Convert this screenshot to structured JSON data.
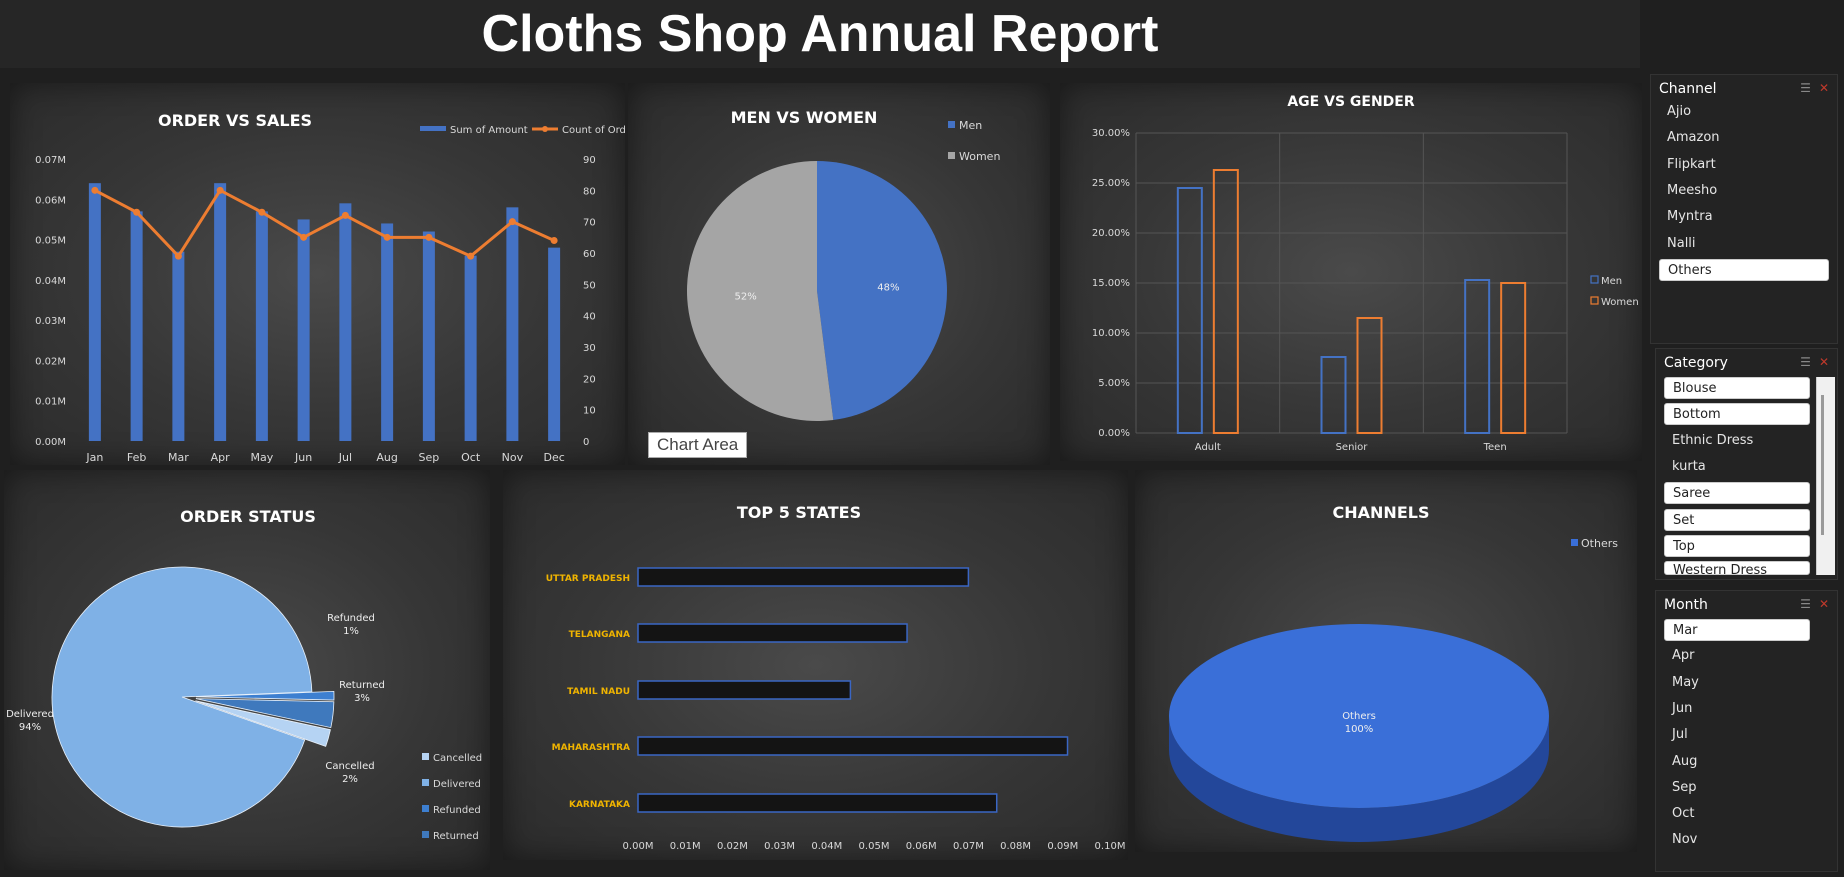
{
  "page": {
    "title": "Cloths Shop Annual Report"
  },
  "tooltip": {
    "chart_area": "Chart Area"
  },
  "chart_data": [
    {
      "id": "order-vs-sales",
      "type": "bar",
      "title": "ORDER VS SALES",
      "categories": [
        "Jan",
        "Feb",
        "Mar",
        "Apr",
        "May",
        "Jun",
        "Jul",
        "Aug",
        "Sep",
        "Oct",
        "Nov",
        "Dec"
      ],
      "series": [
        {
          "name": "Sum of Amount",
          "type": "bar",
          "axis": "left",
          "color": "#4472c4",
          "values": [
            0.064,
            0.057,
            0.047,
            0.064,
            0.057,
            0.055,
            0.059,
            0.054,
            0.052,
            0.046,
            0.058,
            0.048
          ]
        },
        {
          "name": "Count of Order ID",
          "type": "line",
          "axis": "right",
          "color": "#ed7d31",
          "values": [
            80,
            73,
            59,
            80,
            73,
            65,
            72,
            65,
            65,
            59,
            70,
            64
          ]
        }
      ],
      "left_ticks": [
        "0.00M",
        "0.01M",
        "0.02M",
        "0.03M",
        "0.04M",
        "0.05M",
        "0.06M",
        "0.07M"
      ],
      "left_range": [
        0,
        0.07
      ],
      "right_ticks": [
        "0",
        "10",
        "20",
        "30",
        "40",
        "50",
        "60",
        "70",
        "80",
        "90"
      ],
      "right_range": [
        0,
        90
      ],
      "legend": "top-right"
    },
    {
      "id": "men-vs-women",
      "type": "pie",
      "title": "MEN VS WOMEN",
      "slices": [
        {
          "label": "Men",
          "value": 48,
          "display": "48%",
          "color": "#4472c4"
        },
        {
          "label": "Women",
          "value": 52,
          "display": "52%",
          "color": "#a5a5a5"
        }
      ],
      "legend": "top-right"
    },
    {
      "id": "age-vs-gender",
      "type": "bar",
      "title": "AGE VS GENDER",
      "categories": [
        "Adult",
        "Senior",
        "Teen"
      ],
      "series": [
        {
          "name": "Men",
          "color": "#4472c4",
          "values": [
            24.5,
            7.6,
            15.3
          ]
        },
        {
          "name": "Women",
          "color": "#ed7d31",
          "values": [
            26.3,
            11.5,
            15.0
          ]
        }
      ],
      "y_ticks": [
        "0.00%",
        "5.00%",
        "10.00%",
        "15.00%",
        "20.00%",
        "25.00%",
        "30.00%"
      ],
      "ylim": [
        0,
        30
      ],
      "grid": true,
      "legend": "right"
    },
    {
      "id": "order-status",
      "type": "pie",
      "title": "ORDER STATUS",
      "slices": [
        {
          "label": "Delivered",
          "value": 94,
          "display": "94%",
          "color": "#7fb1e6"
        },
        {
          "label": "Refunded",
          "value": 1,
          "display": "1%",
          "color": "#3d7fd0"
        },
        {
          "label": "Returned",
          "value": 3,
          "display": "3%",
          "color": "#3f79bd"
        },
        {
          "label": "Cancelled",
          "value": 2,
          "display": "2%",
          "color": "#b5d3f3"
        }
      ],
      "legend_order": [
        "Cancelled",
        "Delivered",
        "Refunded",
        "Returned"
      ],
      "legend": "bottom-right"
    },
    {
      "id": "top-5-states",
      "type": "bar",
      "orientation": "horizontal",
      "title": "TOP 5 STATES",
      "categories": [
        "UTTAR PRADESH",
        "TELANGANA",
        "TAMIL NADU",
        "MAHARASHTRA",
        "KARNATAKA"
      ],
      "values": [
        0.07,
        0.057,
        0.045,
        0.091,
        0.076
      ],
      "x_ticks": [
        "0.00M",
        "0.01M",
        "0.02M",
        "0.03M",
        "0.04M",
        "0.05M",
        "0.06M",
        "0.07M",
        "0.08M",
        "0.09M",
        "0.10M"
      ],
      "xlim": [
        0,
        0.1
      ]
    },
    {
      "id": "channels",
      "type": "pie",
      "title": "CHANNELS",
      "slices": [
        {
          "label": "Others",
          "value": 100,
          "display": "100%",
          "color": "#3a6fd8"
        }
      ],
      "legend": "top-right"
    }
  ],
  "slicers": {
    "channel": {
      "title": "Channel",
      "items": [
        {
          "label": "Ajio",
          "selected": false
        },
        {
          "label": "Amazon",
          "selected": false
        },
        {
          "label": "Flipkart",
          "selected": false
        },
        {
          "label": "Meesho",
          "selected": false
        },
        {
          "label": "Myntra",
          "selected": false
        },
        {
          "label": "Nalli",
          "selected": false
        },
        {
          "label": "Others",
          "selected": true
        }
      ]
    },
    "category": {
      "title": "Category",
      "items": [
        {
          "label": "Blouse",
          "selected": true
        },
        {
          "label": "Bottom",
          "selected": true
        },
        {
          "label": "Ethnic Dress",
          "selected": false
        },
        {
          "label": "kurta",
          "selected": false
        },
        {
          "label": "Saree",
          "selected": true
        },
        {
          "label": "Set",
          "selected": true
        },
        {
          "label": "Top",
          "selected": true
        },
        {
          "label": "Western Dress",
          "selected": true
        }
      ]
    },
    "month": {
      "title": "Month",
      "items": [
        {
          "label": "Mar",
          "selected": true
        },
        {
          "label": "Apr",
          "selected": false
        },
        {
          "label": "May",
          "selected": false
        },
        {
          "label": "Jun",
          "selected": false
        },
        {
          "label": "Jul",
          "selected": false
        },
        {
          "label": "Aug",
          "selected": false
        },
        {
          "label": "Sep",
          "selected": false
        },
        {
          "label": "Oct",
          "selected": false
        },
        {
          "label": "Nov",
          "selected": false
        }
      ]
    }
  }
}
